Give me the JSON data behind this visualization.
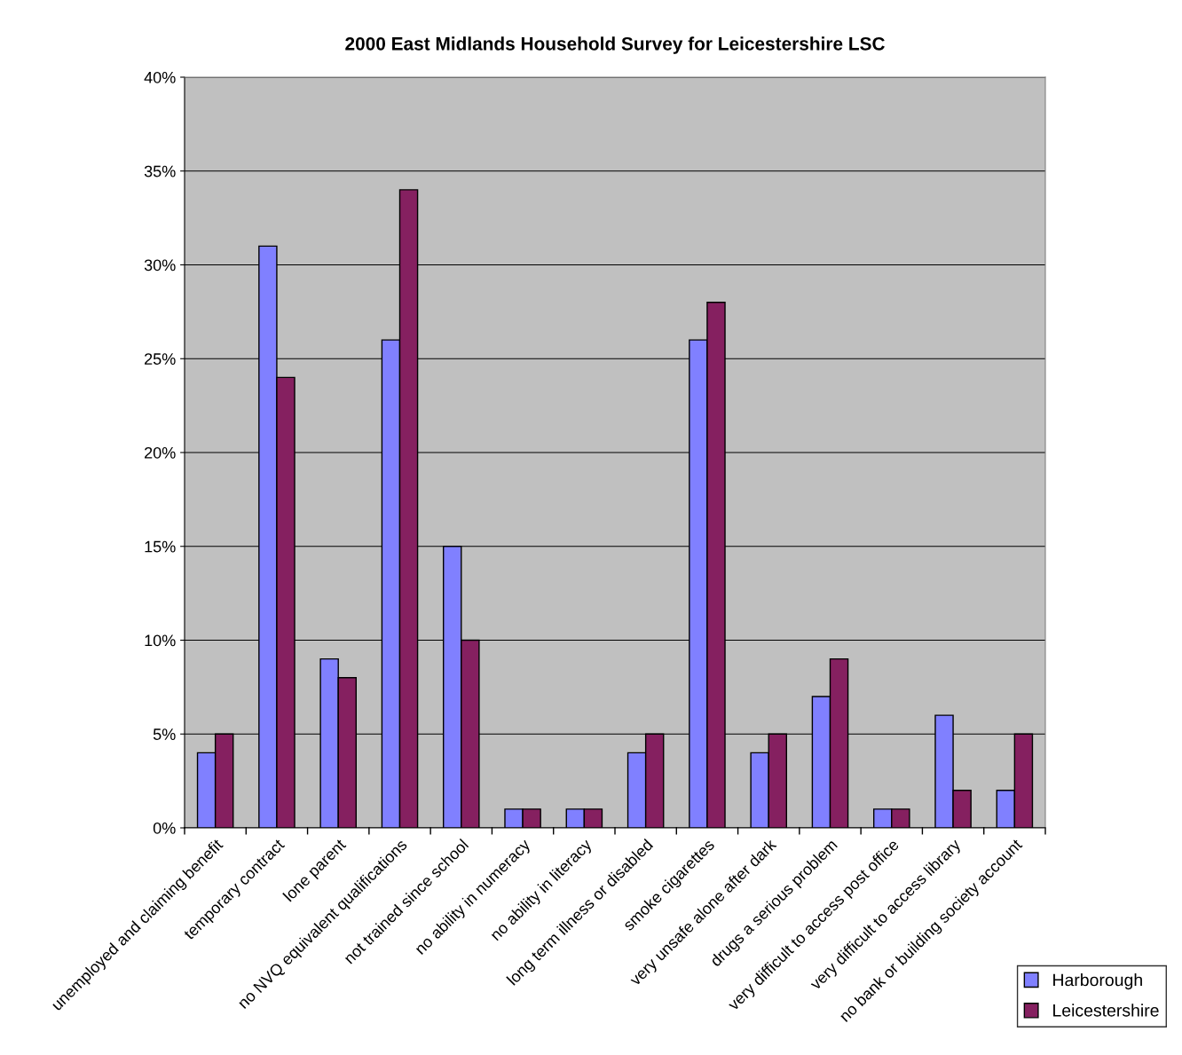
{
  "chart_data": {
    "type": "bar",
    "title": "2000 East Midlands Household Survey for Leicestershire LSC",
    "categories": [
      "unemployed and claiming benefit",
      "temporary contract",
      "lone parent",
      "no NVQ equivalent qualifications",
      "not trained since school",
      "no ability in numeracy",
      "no ability in literacy",
      "long term illness or disabled",
      "smoke cigarettes",
      "very unsafe alone after dark",
      "drugs a serious problem",
      "very difficult to access post office",
      "very difficult to access library",
      "no bank or building society account"
    ],
    "series": [
      {
        "name": "Harborough",
        "color": "#8080ff",
        "values": [
          4,
          31,
          9,
          26,
          15,
          1,
          1,
          4,
          26,
          4,
          7,
          1,
          6,
          2
        ]
      },
      {
        "name": "Leicestershire",
        "color": "#852060",
        "values": [
          5,
          24,
          8,
          34,
          10,
          1,
          1,
          5,
          28,
          5,
          9,
          1,
          2,
          5
        ]
      }
    ],
    "ylim": [
      0,
      40
    ],
    "yticks": [
      {
        "value": 0,
        "label": "0%"
      },
      {
        "value": 5,
        "label": "5%"
      },
      {
        "value": 10,
        "label": "10%"
      },
      {
        "value": 15,
        "label": "15%"
      },
      {
        "value": 20,
        "label": "20%"
      },
      {
        "value": 25,
        "label": "25%"
      },
      {
        "value": 30,
        "label": "30%"
      },
      {
        "value": 35,
        "label": "35%"
      },
      {
        "value": 40,
        "label": "40%"
      }
    ],
    "grid": "y",
    "legend": "bottom right"
  }
}
